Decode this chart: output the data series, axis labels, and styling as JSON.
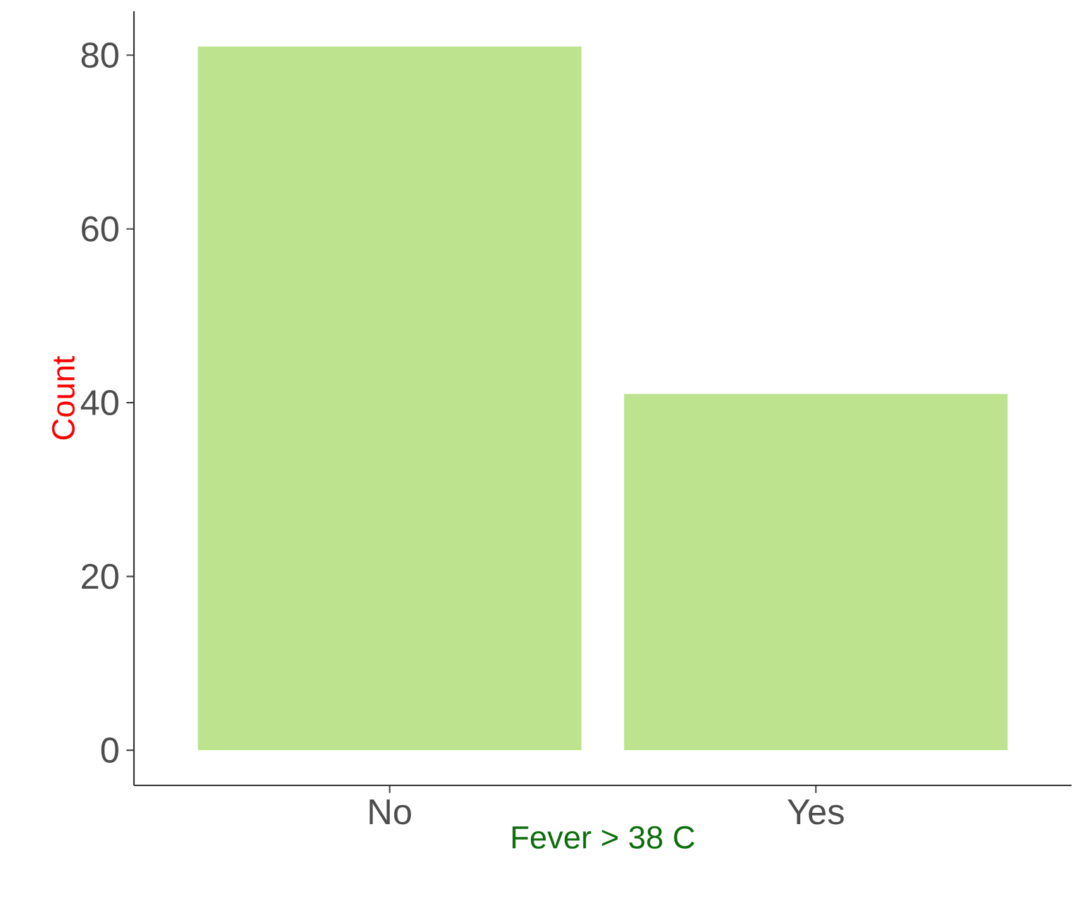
{
  "chart_data": {
    "type": "bar",
    "xlabel": "Fever > 38 C",
    "ylabel": "Count",
    "categories": [
      "No",
      "Yes"
    ],
    "values": [
      81,
      41
    ],
    "color": "#bde38f",
    "ylim": [
      -4.05,
      85.05
    ],
    "yticks": [
      0,
      20,
      40,
      60,
      80
    ],
    "grid": false
  }
}
